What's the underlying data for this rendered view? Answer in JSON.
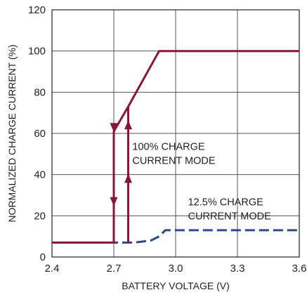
{
  "chart_data": {
    "type": "line",
    "xlabel": "BATTERY VOLTAGE (V)",
    "ylabel": "NORMALIZED CHARGE CURRENT (%)",
    "xlim": [
      2.4,
      3.6
    ],
    "ylim": [
      0,
      120
    ],
    "xticks": [
      "2.4",
      "2.7",
      "3.0",
      "3.3",
      "3.6"
    ],
    "yticks": [
      "0",
      "20",
      "40",
      "60",
      "80",
      "100",
      "120"
    ],
    "grid": true,
    "series": [
      {
        "name": "100% CHARGE CURRENT MODE",
        "color": "#8a1538",
        "style": "solid",
        "points": [
          [
            2.4,
            7
          ],
          [
            2.7,
            7
          ],
          [
            2.7,
            61
          ],
          [
            2.77,
            73
          ],
          [
            2.92,
            100
          ],
          [
            3.6,
            100
          ]
        ],
        "rise_at_x": 2.77,
        "rise_from_y": 7,
        "rise_to_y": 73,
        "arrows": [
          {
            "x": 2.7,
            "y": 63,
            "dir": "down"
          },
          {
            "x": 2.7,
            "y": 27,
            "dir": "down"
          },
          {
            "x": 2.77,
            "y": 64,
            "dir": "up"
          },
          {
            "x": 2.77,
            "y": 38,
            "dir": "up"
          }
        ]
      },
      {
        "name": "12.5% CHARGE CURRENT MODE",
        "color": "#2e4a8c",
        "style": "dashed",
        "points": [
          [
            2.4,
            7
          ],
          [
            2.8,
            7
          ],
          [
            2.88,
            8
          ],
          [
            2.92,
            10
          ],
          [
            2.95,
            13
          ],
          [
            3.6,
            13
          ]
        ]
      }
    ],
    "annotations": [
      {
        "lines": [
          "100% CHARGE",
          "CURRENT MODE"
        ],
        "x": 2.79,
        "y": 52
      },
      {
        "lines": [
          "12.5% CHARGE",
          "CURRENT MODE"
        ],
        "x": 3.06,
        "y": 25
      }
    ]
  }
}
